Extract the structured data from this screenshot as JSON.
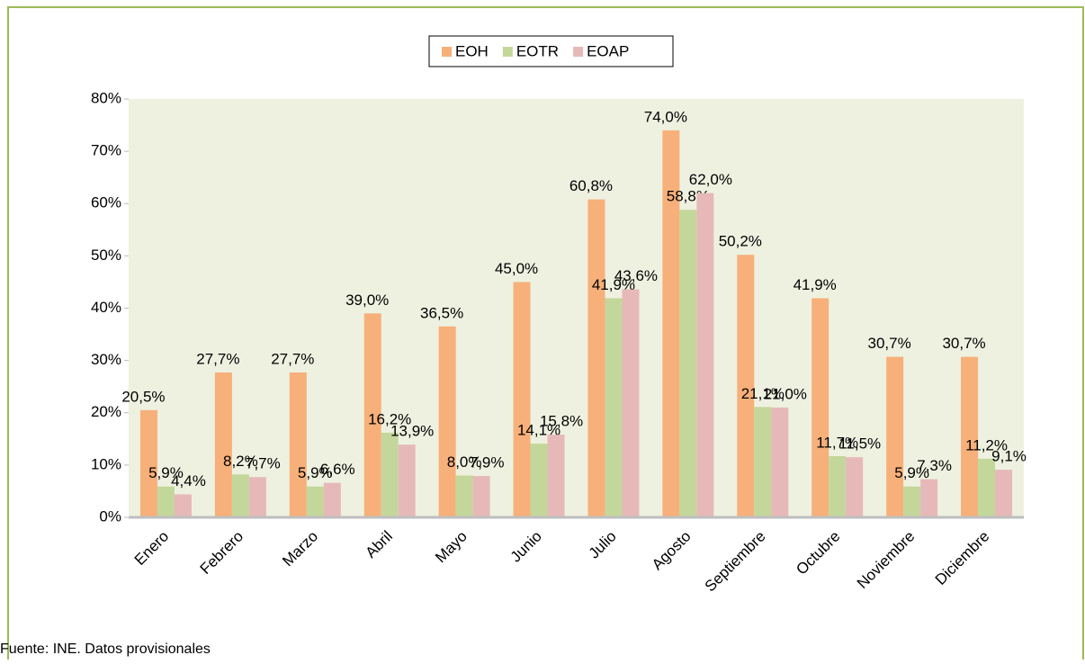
{
  "chart_data": {
    "type": "bar",
    "categories": [
      "Enero",
      "Febrero",
      "Marzo",
      "Abril",
      "Mayo",
      "Junio",
      "Julio",
      "Agosto",
      "Septiembre",
      "Octubre",
      "Noviembre",
      "Diciembre"
    ],
    "series": [
      {
        "name": "EOH",
        "color": "#f7b07a",
        "values": [
          20.5,
          27.7,
          27.7,
          39.0,
          36.5,
          45.0,
          60.8,
          74.0,
          50.2,
          41.9,
          30.7,
          30.7
        ],
        "value_labels": [
          "20,5%",
          "27,7%",
          "27,7%",
          "39,0%",
          "36,5%",
          "45,0%",
          "60,8%",
          "74,0%",
          "50,2%",
          "41,9%",
          "30,7%",
          "30,7%"
        ]
      },
      {
        "name": "EOTR",
        "color": "#c4d79b",
        "values": [
          5.9,
          8.2,
          5.9,
          16.2,
          8.0,
          14.1,
          41.9,
          58.8,
          21.1,
          11.7,
          5.9,
          11.2
        ],
        "value_labels": [
          "5,9%",
          "8,2%",
          "5,9%",
          "16,2%",
          "8,0%",
          "14,1%",
          "41,9%",
          "58,8%",
          "21,1%",
          "11,7%",
          "5,9%",
          "11,2%"
        ]
      },
      {
        "name": "EOAP",
        "color": "#e6b9b8",
        "values": [
          4.4,
          7.7,
          6.6,
          13.9,
          7.9,
          15.8,
          43.6,
          62.0,
          21.0,
          11.5,
          7.3,
          9.1
        ],
        "value_labels": [
          "4,4%",
          "7,7%",
          "6,6%",
          "13,9%",
          "7,9%",
          "15,8%",
          "43,6%",
          "62,0%",
          "21,0%",
          "11,5%",
          "7,3%",
          "9,1%"
        ]
      }
    ],
    "ylim": [
      0,
      80
    ],
    "yticks": [
      {
        "value": 0,
        "label": "0%"
      },
      {
        "value": 10,
        "label": "10%"
      },
      {
        "value": 20,
        "label": "20%"
      },
      {
        "value": 30,
        "label": "30%"
      },
      {
        "value": 40,
        "label": "40%"
      },
      {
        "value": 50,
        "label": "50%"
      },
      {
        "value": 60,
        "label": "60%"
      },
      {
        "value": 70,
        "label": "70%"
      },
      {
        "value": 80,
        "label": "80%"
      }
    ],
    "legend": "top",
    "source": "Fuente: INE. Datos provisionales"
  }
}
